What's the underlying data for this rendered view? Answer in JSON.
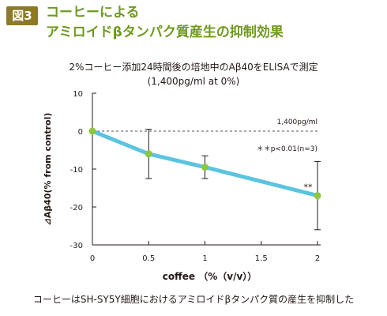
{
  "figure": {
    "label": "図3",
    "title_line1": "コーヒーによる",
    "title_line2": "アミロイドβタンパク質産生の抑制効果",
    "subtitle_line1": "2%コーヒー添加24時間後の培地中のAβ40をELISAで測定",
    "subtitle_line2": "(1,400pg/ml at 0%)",
    "caption": "コーヒーはSH-SY5Y細胞におけるアミロイドβタンパク質の産生を抑制した"
  },
  "colors": {
    "title": "#6f9a1f",
    "badge": "#8c7a27",
    "line": "#5bc4e0",
    "marker": "#8dc63f",
    "axis": "#231815"
  },
  "chart_data": {
    "type": "line",
    "x": [
      0,
      0.5,
      1,
      2
    ],
    "xlabel": "coffee （%（v/v））",
    "ylabel": "⊿Aβ40(% from control)",
    "xlim": [
      0,
      2
    ],
    "ylim": [
      -30,
      10
    ],
    "xticks": [
      0,
      0.5,
      1,
      1.5,
      2
    ],
    "xtick_labels": [
      "0",
      "0.5",
      "1",
      "1.5",
      "2"
    ],
    "yticks": [
      10,
      0,
      -10,
      -20,
      -30
    ],
    "ytick_labels": [
      "10",
      "0",
      "-10",
      "-20",
      "-30"
    ],
    "series": [
      {
        "values": [
          0,
          -6,
          -9.5,
          -17
        ],
        "error": [
          0,
          6.5,
          3,
          9
        ],
        "significance": [
          null,
          null,
          null,
          "**"
        ]
      }
    ],
    "reference_line": {
      "y": 0,
      "label": "1,400pg/ml",
      "style": "dashed"
    },
    "annotation": "＊＊p<0.01(n=3)",
    "grid": false,
    "legend": false
  }
}
